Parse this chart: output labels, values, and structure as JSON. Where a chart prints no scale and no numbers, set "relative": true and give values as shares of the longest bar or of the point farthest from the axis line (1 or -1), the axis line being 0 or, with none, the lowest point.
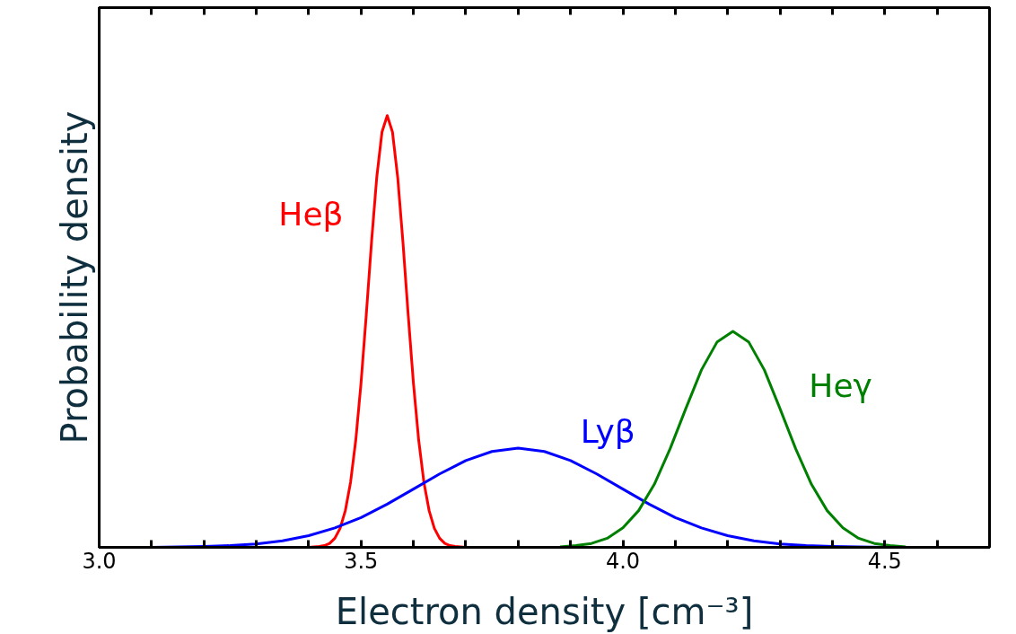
{
  "chart_data": {
    "type": "line",
    "relative": true,
    "xlabel": "Electron density [cm⁻³]",
    "ylabel": "Probability density",
    "xlim": [
      3.0,
      4.7
    ],
    "xticks": [
      {
        "value": 3.0,
        "label": "3.0"
      },
      {
        "value": 3.1,
        "label": null
      },
      {
        "value": 3.2,
        "label": null
      },
      {
        "value": 3.3,
        "label": null
      },
      {
        "value": 3.4,
        "label": null
      },
      {
        "value": 3.5,
        "label": "3.5"
      },
      {
        "value": 3.6,
        "label": null
      },
      {
        "value": 3.7,
        "label": null
      },
      {
        "value": 3.8,
        "label": null
      },
      {
        "value": 3.9,
        "label": null
      },
      {
        "value": 4.0,
        "label": "4.0"
      },
      {
        "value": 4.1,
        "label": null
      },
      {
        "value": 4.2,
        "label": null
      },
      {
        "value": 4.3,
        "label": null
      },
      {
        "value": 4.4,
        "label": null
      },
      {
        "value": 4.5,
        "label": "4.5"
      },
      {
        "value": 4.6,
        "label": null
      }
    ],
    "grid": false,
    "legend": false,
    "marker": "none",
    "line_style": "solid",
    "series": [
      {
        "name": "Heβ",
        "color": "#ff0000",
        "x": [
          3.38,
          3.39,
          3.4,
          3.41,
          3.42,
          3.43,
          3.44,
          3.45,
          3.46,
          3.47,
          3.48,
          3.49,
          3.5,
          3.51,
          3.52,
          3.53,
          3.54,
          3.55,
          3.56,
          3.57,
          3.58,
          3.59,
          3.6,
          3.61,
          3.62,
          3.63,
          3.64,
          3.65,
          3.66,
          3.67,
          3.68,
          3.69,
          3.7
        ],
        "values": [
          0,
          0,
          0,
          0.001,
          0.002,
          0.004,
          0.009,
          0.021,
          0.044,
          0.085,
          0.151,
          0.249,
          0.381,
          0.539,
          0.707,
          0.857,
          0.962,
          1,
          0.962,
          0.857,
          0.707,
          0.539,
          0.381,
          0.249,
          0.151,
          0.085,
          0.044,
          0.021,
          0.009,
          0.004,
          0.002,
          0.001,
          0
        ]
      },
      {
        "name": "Lyβ",
        "color": "#0000ff",
        "x": [
          3.1,
          3.15,
          3.2,
          3.25,
          3.3,
          3.35,
          3.4,
          3.45,
          3.5,
          3.55,
          3.6,
          3.65,
          3.7,
          3.75,
          3.8,
          3.85,
          3.9,
          3.95,
          4.0,
          4.05,
          4.1,
          4.15,
          4.2,
          4.25,
          4.3,
          4.35,
          4.4,
          4.45,
          4.5
        ],
        "values": [
          0,
          0.001,
          0.002,
          0.004,
          0.008,
          0.015,
          0.027,
          0.045,
          0.069,
          0.1,
          0.135,
          0.17,
          0.201,
          0.222,
          0.23,
          0.222,
          0.201,
          0.17,
          0.135,
          0.1,
          0.069,
          0.045,
          0.027,
          0.015,
          0.008,
          0.004,
          0.002,
          0.001,
          0
        ]
      },
      {
        "name": "Heγ",
        "color": "#008000",
        "x": [
          3.88,
          3.91,
          3.94,
          3.97,
          4.0,
          4.03,
          4.06,
          4.09,
          4.12,
          4.15,
          4.18,
          4.21,
          4.24,
          4.27,
          4.3,
          4.33,
          4.36,
          4.39,
          4.42,
          4.45,
          4.48,
          4.51,
          4.54
        ],
        "values": [
          0.001,
          0.004,
          0.009,
          0.021,
          0.045,
          0.085,
          0.146,
          0.228,
          0.321,
          0.411,
          0.476,
          0.5,
          0.476,
          0.411,
          0.321,
          0.228,
          0.146,
          0.085,
          0.045,
          0.021,
          0.009,
          0.004,
          0.001
        ]
      }
    ]
  }
}
